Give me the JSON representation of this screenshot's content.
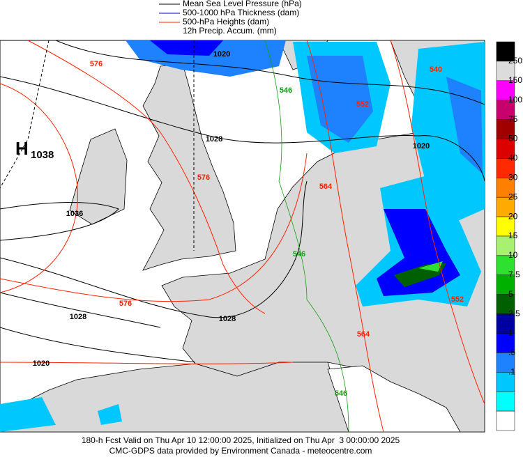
{
  "legend": [
    {
      "name": "Mean Sea Level Pressure (hPa)",
      "color": "#000000"
    },
    {
      "name": "500-1000 hPa Thickness (dam)",
      "color": "#0000cc"
    },
    {
      "name": "500-hPa Heights (dam)",
      "color": "#ff2200"
    },
    {
      "name": "12h Precip. Accum. (mm)"
    }
  ],
  "high": {
    "letter": "H",
    "value": "1038"
  },
  "contour_labels": {
    "pressure": [
      "1020",
      "1028",
      "1036",
      "1028",
      "1028",
      "1020",
      "1020"
    ],
    "heights": [
      "576",
      "576",
      "564",
      "576",
      "564",
      "540",
      "552",
      "552"
    ],
    "thickness": [
      "546",
      "546",
      "546"
    ]
  },
  "colorbar": {
    "labels": [
      "250",
      "150",
      "100",
      "75",
      "50",
      "40",
      "30",
      "25",
      "20",
      "15",
      "10",
      "7.5",
      "5",
      "2.5",
      "1",
      ".5",
      ".1"
    ],
    "colors": [
      "#000000",
      "#dcdcdc",
      "#ff00ff",
      "#c8006e",
      "#a00000",
      "#dc0000",
      "#ff2a00",
      "#ff7f00",
      "#ffaa00",
      "#ffff00",
      "#a8f070",
      "#30e030",
      "#00b000",
      "#006000",
      "#0000a0",
      "#0000ff",
      "#1e82ff",
      "#00c8ff",
      "#00ffff",
      "#ffffff"
    ]
  },
  "footer": [
    "180-h Fcst Valid on Thu Apr 10 12:00:00 2025, Initialized on Thu Apr  3 00:00:00 2025",
    "CMC-GDPS data provided by Environment Canada - meteocentre.com"
  ]
}
